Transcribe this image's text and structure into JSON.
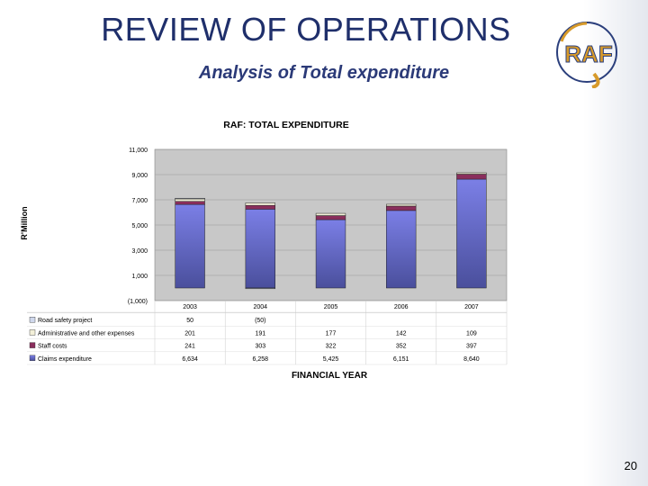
{
  "slide": {
    "title": "REVIEW OF OPERATIONS",
    "subtitle": "Analysis of Total expenditure",
    "page_number": "20",
    "logo_text": "RAF"
  },
  "colors": {
    "title": "#1f2f6b",
    "claims": "#7b7fe6",
    "claims_dark": "#4a4f9c",
    "staff": "#8a2e5c",
    "admin": "#f3f0d9",
    "road": "#cfd8ec",
    "plot_bg": "#c8c8c8",
    "logo_gold": "#d79a2a",
    "logo_navy": "#2b3f7c"
  },
  "chart_data": {
    "type": "bar",
    "stacked": true,
    "title": "RAF: TOTAL EXPENDITURE",
    "xlabel": "FINANCIAL YEAR",
    "ylabel": "R'Million",
    "ylim": [
      -1000,
      11000
    ],
    "yticks": [
      -1000,
      1000,
      3000,
      5000,
      7000,
      9000,
      11000
    ],
    "ytick_labels": [
      "(1,000)",
      "1,000",
      "3,000",
      "5,000",
      "7,000",
      "9,000",
      "11,000"
    ],
    "categories": [
      "2003",
      "2004",
      "2005",
      "2006",
      "2007"
    ],
    "series": [
      {
        "name": "Claims expenditure",
        "values": [
          6634,
          6258,
          5425,
          6151,
          8640
        ],
        "labels": [
          "6,634",
          "6,258",
          "5,425",
          "6,151",
          "8,640"
        ]
      },
      {
        "name": "Staff costs",
        "values": [
          241,
          303,
          322,
          352,
          397
        ],
        "labels": [
          "241",
          "303",
          "322",
          "352",
          "397"
        ]
      },
      {
        "name": "Administrative and other expenses",
        "values": [
          201,
          191,
          177,
          142,
          109
        ],
        "labels": [
          "201",
          "191",
          "177",
          "142",
          "109"
        ]
      },
      {
        "name": "Road safety project",
        "values": [
          50,
          -50,
          null,
          null,
          null
        ],
        "labels": [
          "50",
          "(50)",
          "",
          "",
          ""
        ]
      }
    ],
    "table_order": [
      3,
      2,
      1,
      0
    ],
    "grid": true,
    "legend": "table-left"
  }
}
